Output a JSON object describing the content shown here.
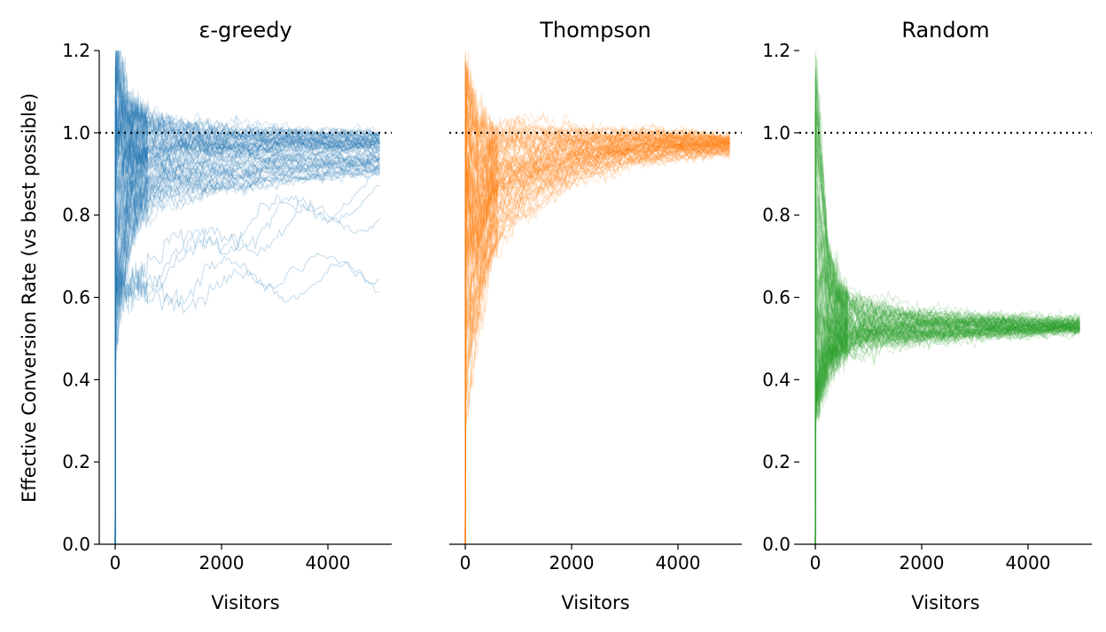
{
  "chart_data": {
    "type": "line",
    "ylabel": "Effective Conversion Rate (vs best possible)",
    "ylim": [
      0,
      1.2
    ],
    "yticks": [
      "0.0",
      "0.2",
      "0.4",
      "0.6",
      "0.8",
      "1.0",
      "1.2"
    ],
    "reference_line": {
      "y": 1.0,
      "style": "dotted",
      "color": "#000000"
    },
    "grid": false,
    "legend": "none",
    "runs_per_panel": 100,
    "panels": [
      {
        "title": "ε-greedy",
        "xlabel": "Visitors",
        "xlim": [
          -300,
          5200
        ],
        "xticks": [
          "0",
          "2000",
          "4000"
        ],
        "color": "#1f77b4",
        "series_summary": {
          "x": [
            0,
            250,
            500,
            1000,
            2000,
            3000,
            4000,
            5000
          ],
          "p10": [
            0.45,
            0.72,
            0.8,
            0.84,
            0.86,
            0.88,
            0.89,
            0.9
          ],
          "median": [
            1.0,
            0.94,
            0.95,
            0.96,
            0.965,
            0.97,
            0.97,
            0.97
          ],
          "p90": [
            1.2,
            1.08,
            1.05,
            1.03,
            1.01,
            1.005,
            1.0,
            1.0
          ],
          "low_runs_end": [
            0.65,
            0.69,
            0.81,
            0.84,
            0.86
          ]
        }
      },
      {
        "title": "Thompson",
        "xlabel": "Visitors",
        "xlim": [
          -300,
          5200
        ],
        "xticks": [
          "0",
          "2000",
          "4000"
        ],
        "color": "#ff7f0e",
        "series_summary": {
          "x": [
            0,
            250,
            500,
            1000,
            2000,
            3000,
            4000,
            5000
          ],
          "p10": [
            0.3,
            0.55,
            0.7,
            0.8,
            0.88,
            0.92,
            0.94,
            0.95
          ],
          "median": [
            0.8,
            0.75,
            0.85,
            0.9,
            0.94,
            0.96,
            0.97,
            0.97
          ],
          "p90": [
            1.2,
            1.05,
            1.02,
            1.02,
            1.01,
            1.0,
            1.0,
            0.99
          ]
        }
      },
      {
        "title": "Random",
        "xlabel": "Visitors",
        "xlim": [
          -300,
          5200
        ],
        "xticks": [
          "0",
          "2000",
          "4000"
        ],
        "color": "#2ca02c",
        "series_summary": {
          "x": [
            0,
            250,
            500,
            1000,
            2000,
            3000,
            4000,
            5000
          ],
          "p10": [
            0.3,
            0.42,
            0.46,
            0.49,
            0.5,
            0.51,
            0.515,
            0.52
          ],
          "median": [
            0.6,
            0.55,
            0.54,
            0.53,
            0.53,
            0.53,
            0.53,
            0.53
          ],
          "p90": [
            1.2,
            0.7,
            0.62,
            0.58,
            0.56,
            0.55,
            0.545,
            0.545
          ]
        }
      }
    ]
  }
}
